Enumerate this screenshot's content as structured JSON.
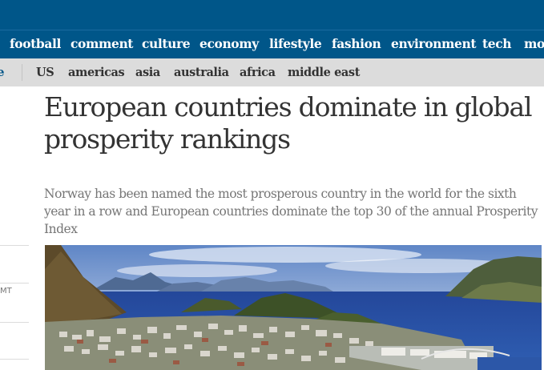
{
  "nav": {
    "items": [
      "football",
      "comment",
      "culture",
      "economy",
      "lifestyle",
      "fashion",
      "environment",
      "tech",
      "mo"
    ]
  },
  "subnav": {
    "edge": "e",
    "items": [
      "US",
      "americas",
      "asia",
      "australia",
      "africa",
      "middle east"
    ]
  },
  "sidebar": {
    "fragment": "MT"
  },
  "article": {
    "headline": "European countries dominate in global prosperity rankings",
    "standfirst": "Norway has been named the most prosperous country in the world for the sixth year in a row and European countries dominate the top 30 of the annual Prosperity Index"
  },
  "colors": {
    "brand": "#005689",
    "subnav_bg": "#dcdcdc",
    "headline": "#333333",
    "standfirst": "#767676"
  },
  "photo": {
    "subject": "coastal-town-photo"
  }
}
